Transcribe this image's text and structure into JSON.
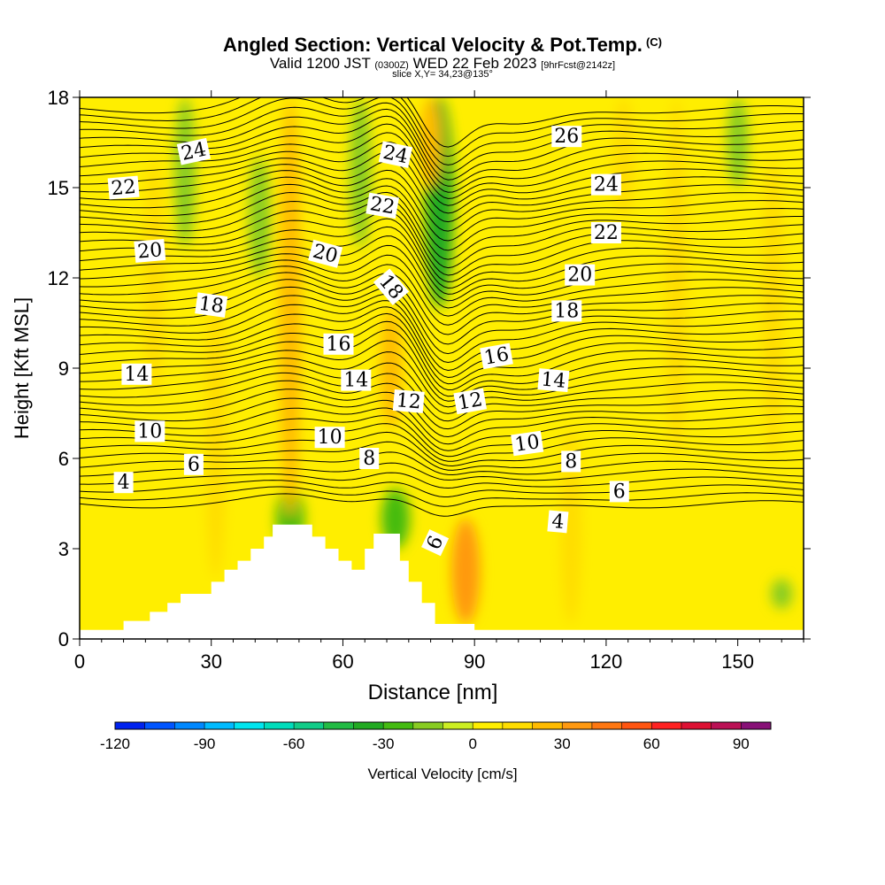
{
  "title": {
    "main": "Angled Section: Vertical Velocity & Pot.Temp.",
    "units": "(C)",
    "valid_pre": "Valid 1200 JST",
    "valid_z": "(0300Z)",
    "valid_post": "WED 22 Feb 2023",
    "fcst": "[9hrFcst@2142z]",
    "slice": "slice X,Y= 34,23@135°"
  },
  "chart_data": {
    "type": "heatmap",
    "xlabel": "Distance [nm]",
    "ylabel": "Height [Kft MSL]",
    "xlim": [
      0,
      165
    ],
    "ylim": [
      0,
      18
    ],
    "x_ticks": [
      0,
      30,
      60,
      90,
      120,
      150
    ],
    "y_ticks": [
      0,
      3,
      6,
      9,
      12,
      15,
      18
    ],
    "colorbar": {
      "label": "Vertical Velocity [cm/s]",
      "min": -120,
      "max": 100,
      "step": 10,
      "tick_values": [
        -120,
        -90,
        -60,
        -30,
        0,
        30,
        60,
        90
      ],
      "colors": [
        "#0022ee",
        "#0055ff",
        "#0088ff",
        "#00bbff",
        "#00e5ee",
        "#00ddbb",
        "#11cc88",
        "#22bb44",
        "#22aa22",
        "#44bb11",
        "#88cc22",
        "#ccee22",
        "#ffee00",
        "#ffdd00",
        "#ffbb00",
        "#ff9911",
        "#ff7711",
        "#ff5511",
        "#ff2222",
        "#dd1133",
        "#bb1155",
        "#881177"
      ]
    },
    "velocity_features": [
      {
        "x": 82,
        "y_from": 11,
        "y_to": 18,
        "value": -35
      },
      {
        "x": 48,
        "y_from": 3,
        "y_to": 5,
        "value": -30
      },
      {
        "x": 72,
        "y_from": 3,
        "y_to": 5,
        "value": -30
      },
      {
        "x": 24,
        "y_from": 13,
        "y_to": 18,
        "value": -20
      },
      {
        "x": 41,
        "y_from": 12,
        "y_to": 16,
        "value": -20
      },
      {
        "x": 64,
        "y_from": 13,
        "y_to": 18,
        "value": -20
      },
      {
        "x": 150,
        "y_from": 15,
        "y_to": 18,
        "value": -20
      },
      {
        "x": 88,
        "y_from": 0.5,
        "y_to": 4,
        "value": 30
      },
      {
        "x": 48,
        "y_from": 4,
        "y_to": 18,
        "value": 20
      },
      {
        "x": 71,
        "y_from": 7,
        "y_to": 11,
        "value": 25
      },
      {
        "x": 80,
        "y_from": 15,
        "y_to": 18,
        "value": 20
      },
      {
        "x": 17,
        "y_from": 8,
        "y_to": 16,
        "value": 15
      },
      {
        "x": 124,
        "y_from": 14,
        "y_to": 18,
        "value": 15
      },
      {
        "x": 136,
        "y_from": 6,
        "y_to": 18,
        "value": 15
      },
      {
        "x": 31,
        "y_from": 2,
        "y_to": 12,
        "value": 15
      },
      {
        "x": 112,
        "y_from": 0.5,
        "y_to": 7,
        "value": 15
      },
      {
        "x": 158,
        "y_from": 6,
        "y_to": 16,
        "value": 15
      },
      {
        "x": 160,
        "y_from": 1,
        "y_to": 2,
        "value": -20
      }
    ],
    "terrain_top_kft": [
      [
        0,
        0.3
      ],
      [
        10,
        0.3
      ],
      [
        10,
        0.6
      ],
      [
        16,
        0.6
      ],
      [
        16,
        0.9
      ],
      [
        20,
        0.9
      ],
      [
        20,
        1.2
      ],
      [
        23,
        1.2
      ],
      [
        23,
        1.5
      ],
      [
        30,
        1.5
      ],
      [
        30,
        1.9
      ],
      [
        33,
        1.9
      ],
      [
        33,
        2.3
      ],
      [
        36,
        2.3
      ],
      [
        36,
        2.6
      ],
      [
        39,
        2.6
      ],
      [
        39,
        3.0
      ],
      [
        42,
        3.0
      ],
      [
        42,
        3.4
      ],
      [
        44,
        3.4
      ],
      [
        44,
        3.8
      ],
      [
        53,
        3.8
      ],
      [
        53,
        3.4
      ],
      [
        56,
        3.4
      ],
      [
        56,
        3.0
      ],
      [
        59,
        3.0
      ],
      [
        59,
        2.6
      ],
      [
        62,
        2.6
      ],
      [
        62,
        2.3
      ],
      [
        65,
        2.3
      ],
      [
        65,
        3.0
      ],
      [
        67,
        3.0
      ],
      [
        67,
        3.5
      ],
      [
        73,
        3.5
      ],
      [
        73,
        2.6
      ],
      [
        75,
        2.6
      ],
      [
        75,
        1.9
      ],
      [
        78,
        1.9
      ],
      [
        78,
        1.2
      ],
      [
        81,
        1.2
      ],
      [
        81,
        0.5
      ],
      [
        90,
        0.5
      ],
      [
        90,
        0.3
      ],
      [
        165,
        0.3
      ]
    ],
    "theta_contour_levels": [
      4,
      6,
      8,
      10,
      12,
      14,
      16,
      18,
      20,
      22,
      24,
      26
    ],
    "theta_contour_labels": [
      {
        "text": "24",
        "x": 26,
        "y": 16.2,
        "angle": 12
      },
      {
        "text": "24",
        "x": 72,
        "y": 16.1,
        "angle": -12
      },
      {
        "text": "26",
        "x": 111,
        "y": 16.7,
        "angle": 0
      },
      {
        "text": "22",
        "x": 10,
        "y": 15.0,
        "angle": 5
      },
      {
        "text": "22",
        "x": 69,
        "y": 14.4,
        "angle": -10
      },
      {
        "text": "24",
        "x": 120,
        "y": 15.1,
        "angle": 0
      },
      {
        "text": "22",
        "x": 120,
        "y": 13.5,
        "angle": 0
      },
      {
        "text": "20",
        "x": 16,
        "y": 12.9,
        "angle": 5
      },
      {
        "text": "20",
        "x": 56,
        "y": 12.8,
        "angle": -15
      },
      {
        "text": "20",
        "x": 114,
        "y": 12.1,
        "angle": 0
      },
      {
        "text": "18",
        "x": 30,
        "y": 11.1,
        "angle": -8
      },
      {
        "text": "18",
        "x": 71,
        "y": 11.7,
        "angle": -50
      },
      {
        "text": "18",
        "x": 111,
        "y": 10.9,
        "angle": 0
      },
      {
        "text": "16",
        "x": 59,
        "y": 9.8,
        "angle": 0
      },
      {
        "text": "16",
        "x": 95,
        "y": 9.4,
        "angle": 10
      },
      {
        "text": "14",
        "x": 13,
        "y": 8.8,
        "angle": 0
      },
      {
        "text": "14",
        "x": 63,
        "y": 8.6,
        "angle": 0
      },
      {
        "text": "14",
        "x": 108,
        "y": 8.6,
        "angle": -5
      },
      {
        "text": "12",
        "x": 75,
        "y": 7.9,
        "angle": -5
      },
      {
        "text": "12",
        "x": 89,
        "y": 7.9,
        "angle": 10
      },
      {
        "text": "10",
        "x": 16,
        "y": 6.9,
        "angle": 0
      },
      {
        "text": "10",
        "x": 57,
        "y": 6.7,
        "angle": 0
      },
      {
        "text": "10",
        "x": 102,
        "y": 6.5,
        "angle": 8
      },
      {
        "text": "8",
        "x": 66,
        "y": 6.0,
        "angle": 0
      },
      {
        "text": "8",
        "x": 112,
        "y": 5.9,
        "angle": 0
      },
      {
        "text": "6",
        "x": 26,
        "y": 5.8,
        "angle": 0
      },
      {
        "text": "6",
        "x": 123,
        "y": 4.9,
        "angle": 0
      },
      {
        "text": "6",
        "x": 81,
        "y": 3.2,
        "angle": 65
      },
      {
        "text": "4",
        "x": 10,
        "y": 5.2,
        "angle": 0
      },
      {
        "text": "4",
        "x": 109,
        "y": 3.9,
        "angle": -5
      }
    ]
  }
}
